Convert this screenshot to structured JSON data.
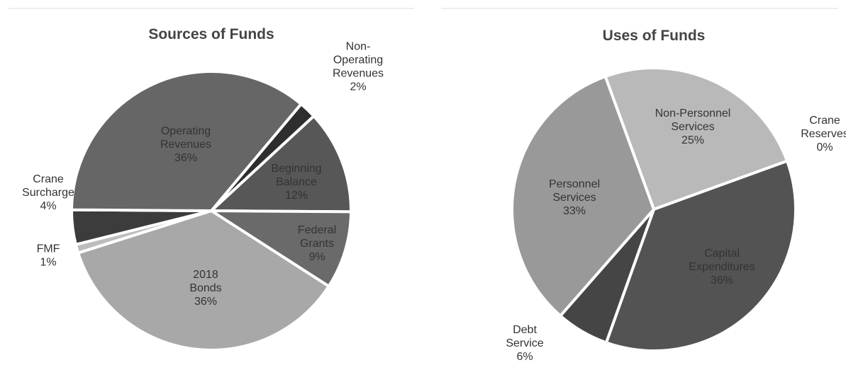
{
  "chart_data": [
    {
      "type": "pie",
      "title": "Sources of Funds",
      "categories": [
        "Non-\nOperating\nRevenues",
        "Beginning\nBalance",
        "Federal\nGrants",
        "2018\nBonds",
        "FMF",
        "Crane\nSurcharge",
        "Operating\nRevenues"
      ],
      "values": [
        2,
        12,
        9,
        36,
        1,
        4,
        36
      ],
      "value_labels": [
        "2%",
        "12%",
        "9%",
        "36%",
        "1%",
        "4%",
        "36%"
      ],
      "colors": [
        "#2e2e2e",
        "#575757",
        "#6a6a6a",
        "#a8a8a8",
        "#bdbdbd",
        "#3c3c3c",
        "#666666"
      ]
    },
    {
      "type": "pie",
      "title": "Uses of Funds",
      "categories": [
        "Non-Personnel\nServices",
        "Crane\nReserves",
        "Capital\nExpenditures",
        "Debt\nService",
        "Personnel\nServices"
      ],
      "values": [
        25,
        0,
        36,
        6,
        33
      ],
      "value_labels": [
        "25%",
        "0%",
        "36%",
        "6%",
        "33%"
      ],
      "colors": [
        "#b9b9b9",
        "#d0d0d0",
        "#535353",
        "#454545",
        "#999999"
      ]
    }
  ]
}
